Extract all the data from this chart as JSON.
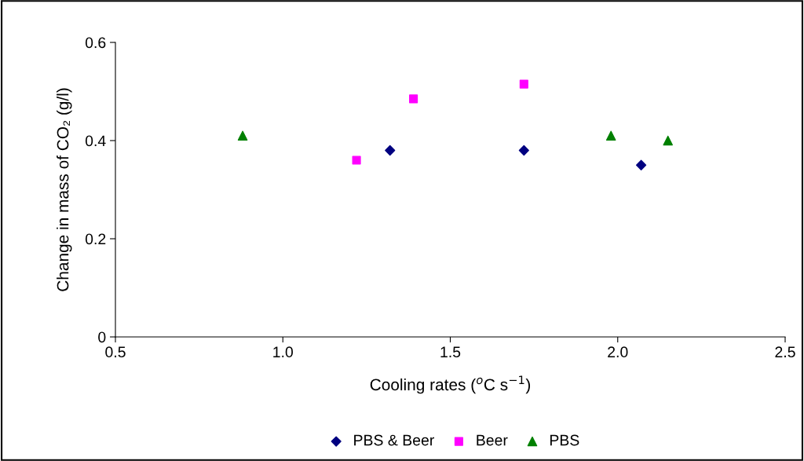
{
  "chart_data": {
    "type": "scatter",
    "xlabel": "Cooling rates ($^{o}$C s$^{−1}$)",
    "ylabel": "Change in mass of CO₂ (g/l)",
    "xlim": [
      0.5,
      2.5
    ],
    "ylim": [
      0,
      0.6
    ],
    "xticks": [
      0.5,
      {
        "value": 1.0,
        "label": "1.0"
      },
      1.5,
      {
        "value": 2.0,
        "label": "2.0"
      },
      2.5
    ],
    "yticks": [
      0,
      0.2,
      0.4,
      0.6
    ],
    "grid": false,
    "legend": "bottom",
    "series": [
      {
        "name": "PBS & Beer",
        "color": "#000080",
        "marker": "diamond",
        "x": [
          1.32,
          1.72,
          2.07
        ],
        "values": [
          0.38,
          0.38,
          0.35
        ]
      },
      {
        "name": "Beer",
        "color": "#ff00ff",
        "marker": "square",
        "x": [
          1.22,
          1.39,
          1.72
        ],
        "values": [
          0.36,
          0.485,
          0.515
        ]
      },
      {
        "name": "PBS",
        "color": "#008000",
        "marker": "triangle",
        "x": [
          0.88,
          1.98,
          2.15
        ],
        "values": [
          0.41,
          0.41,
          0.4
        ]
      }
    ]
  }
}
